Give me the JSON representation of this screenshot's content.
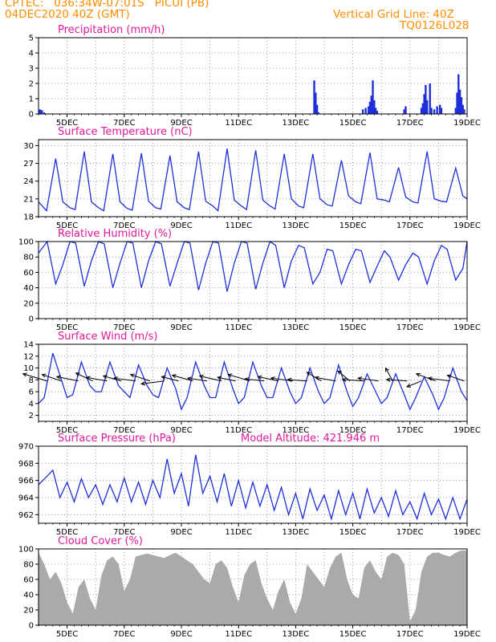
{
  "header": {
    "line1_left": "CPTEC:   036:34W-07:01S   PICUI (PB)",
    "line2_left": "04DEC2020 40Z (GMT)",
    "right1": "Vertical Grid Line: 40Z",
    "right2": "TQ0126L028"
  },
  "colors": {
    "header": "#ff8c00",
    "title": "#e0199a",
    "line": "#1f2fd8",
    "cloud": "#aaaaaa",
    "grid": "#888888"
  },
  "chart_data": [
    {
      "type": "bar",
      "title": "Precipitation (mm/h)",
      "ylim": [
        0,
        5
      ],
      "yticks": [
        "0",
        "1",
        "2",
        "3",
        "4",
        "5"
      ],
      "xticks": [
        "5DEC",
        "7DEC",
        "9DEC",
        "11DEC",
        "13DEC",
        "15DEC",
        "17DEC",
        "19DEC"
      ],
      "xrange_days": [
        4,
        19
      ],
      "series": [
        {
          "x": [
            4.05,
            4.12,
            4.2,
            13.65,
            13.7,
            13.75,
            13.8,
            15.35,
            15.45,
            15.55,
            15.6,
            15.65,
            15.7,
            15.75,
            15.8,
            15.85,
            16.8,
            16.85,
            17.4,
            17.45,
            17.5,
            17.55,
            17.6,
            17.7,
            17.75,
            17.85,
            17.95,
            18.05,
            18.1,
            18.6,
            18.65,
            18.7,
            18.75,
            18.8,
            18.85,
            18.9
          ],
          "values": [
            0.3,
            0.25,
            0.1,
            2.2,
            1.4,
            0.6,
            0.1,
            0.3,
            0.4,
            0.5,
            0.8,
            1.2,
            2.2,
            0.9,
            0.4,
            0.2,
            0.3,
            0.5,
            0.4,
            0.7,
            1.3,
            1.9,
            0.9,
            2.0,
            0.4,
            0.3,
            0.5,
            0.6,
            0.4,
            0.4,
            1.4,
            2.6,
            1.6,
            1.1,
            0.6,
            0.3
          ]
        }
      ]
    },
    {
      "type": "line",
      "title": "Surface Temperature (nC)",
      "ylim": [
        18,
        31
      ],
      "yticks": [
        "18",
        "21",
        "24",
        "27",
        "30"
      ],
      "xticks": [
        "5DEC",
        "7DEC",
        "9DEC",
        "11DEC",
        "13DEC",
        "15DEC",
        "17DEC",
        "19DEC"
      ],
      "xrange_days": [
        4,
        19
      ],
      "series": [
        {
          "x": [
            4.0,
            4.28,
            4.6,
            4.85,
            5.1,
            5.28,
            5.6,
            5.85,
            6.1,
            6.28,
            6.6,
            6.85,
            7.1,
            7.28,
            7.6,
            7.85,
            8.1,
            8.28,
            8.6,
            8.85,
            9.1,
            9.28,
            9.6,
            9.85,
            10.1,
            10.28,
            10.6,
            10.85,
            11.1,
            11.28,
            11.6,
            11.85,
            12.1,
            12.28,
            12.6,
            12.85,
            13.1,
            13.28,
            13.6,
            13.85,
            14.1,
            14.28,
            14.6,
            14.85,
            15.1,
            15.28,
            15.6,
            15.85,
            16.1,
            16.28,
            16.6,
            16.85,
            17.1,
            17.28,
            17.6,
            17.85,
            18.1,
            18.28,
            18.6,
            18.85,
            19.0
          ],
          "values": [
            20.5,
            19.0,
            27.8,
            20.5,
            19.5,
            19.2,
            29.0,
            20.5,
            19.5,
            19.0,
            28.6,
            20.5,
            19.4,
            19.1,
            28.7,
            20.6,
            19.5,
            19.3,
            28.3,
            20.5,
            19.5,
            19.2,
            29.0,
            20.6,
            19.8,
            19.0,
            29.5,
            20.8,
            19.8,
            19.2,
            29.2,
            20.8,
            19.8,
            19.3,
            28.6,
            21.0,
            19.8,
            19.5,
            28.6,
            21.0,
            20.0,
            19.8,
            27.5,
            21.5,
            20.5,
            20.2,
            28.8,
            21.0,
            20.8,
            20.5,
            26.3,
            21.3,
            20.5,
            20.3,
            29.0,
            21.0,
            20.6,
            20.5,
            26.2,
            21.5,
            21.0
          ]
        }
      ]
    },
    {
      "type": "line",
      "title": "Relative Humidity (%)",
      "ylim": [
        0,
        100
      ],
      "yticks": [
        "0",
        "20",
        "40",
        "60",
        "80",
        "100"
      ],
      "xticks": [
        "5DEC",
        "7DEC",
        "9DEC",
        "11DEC",
        "13DEC",
        "15DEC",
        "17DEC",
        "19DEC"
      ],
      "xrange_days": [
        4,
        19
      ],
      "series": [
        {
          "x": [
            4.0,
            4.3,
            4.6,
            4.85,
            5.1,
            5.3,
            5.6,
            5.85,
            6.1,
            6.3,
            6.6,
            6.85,
            7.1,
            7.3,
            7.6,
            7.85,
            8.1,
            8.3,
            8.6,
            8.85,
            9.1,
            9.3,
            9.6,
            9.85,
            10.1,
            10.3,
            10.6,
            10.85,
            11.1,
            11.3,
            11.6,
            11.85,
            12.1,
            12.3,
            12.6,
            12.85,
            13.1,
            13.3,
            13.6,
            13.85,
            14.1,
            14.3,
            14.6,
            14.85,
            15.1,
            15.3,
            15.6,
            15.85,
            16.1,
            16.3,
            16.6,
            16.85,
            17.1,
            17.3,
            17.6,
            17.85,
            18.1,
            18.3,
            18.6,
            18.85,
            19.0
          ],
          "values": [
            85,
            100,
            45,
            70,
            100,
            98,
            42,
            75,
            100,
            97,
            40,
            72,
            100,
            98,
            40,
            75,
            100,
            97,
            42,
            72,
            100,
            98,
            37,
            72,
            100,
            98,
            35,
            72,
            100,
            98,
            38,
            72,
            100,
            95,
            40,
            75,
            95,
            92,
            45,
            60,
            90,
            88,
            45,
            70,
            90,
            88,
            47,
            68,
            88,
            80,
            50,
            70,
            85,
            80,
            45,
            75,
            95,
            90,
            50,
            65,
            100
          ]
        }
      ]
    },
    {
      "type": "line",
      "title": "Surface Wind (m/s)",
      "ylim": [
        1,
        14
      ],
      "yticks": [
        "2",
        "4",
        "6",
        "8",
        "10",
        "12",
        "14"
      ],
      "xticks": [
        "5DEC",
        "7DEC",
        "9DEC",
        "11DEC",
        "13DEC",
        "15DEC",
        "17DEC",
        "19DEC"
      ],
      "xrange_days": [
        4,
        19
      ],
      "series": [
        {
          "x": [
            4.0,
            4.2,
            4.5,
            4.8,
            5.0,
            5.2,
            5.5,
            5.8,
            6.0,
            6.2,
            6.5,
            6.8,
            7.0,
            7.2,
            7.5,
            7.8,
            8.0,
            8.2,
            8.5,
            8.8,
            9.0,
            9.2,
            9.5,
            9.8,
            10.0,
            10.2,
            10.5,
            10.8,
            11.0,
            11.2,
            11.5,
            11.8,
            12.0,
            12.2,
            12.5,
            12.8,
            13.0,
            13.2,
            13.5,
            13.8,
            14.0,
            14.2,
            14.5,
            14.8,
            15.0,
            15.2,
            15.5,
            15.8,
            16.0,
            16.2,
            16.5,
            16.8,
            17.0,
            17.2,
            17.5,
            17.8,
            18.0,
            18.2,
            18.5,
            18.8,
            19.0
          ],
          "values": [
            4,
            5,
            12.5,
            8,
            5,
            5.5,
            11,
            7,
            6,
            6,
            11,
            7,
            6,
            5,
            10.5,
            7,
            5.5,
            5,
            10,
            6.5,
            3,
            5,
            11,
            7,
            5,
            5,
            11,
            6.5,
            4,
            5,
            11,
            7,
            5,
            5,
            10,
            6,
            4,
            5,
            10,
            6,
            4,
            5,
            10.5,
            6,
            3.5,
            5,
            9,
            6,
            4,
            5,
            9,
            5.5,
            3,
            5,
            8.5,
            5.5,
            3,
            5,
            10,
            6,
            4.5
          ]
        }
      ]
    },
    {
      "type": "line",
      "title": "Surface Pressure (hPa)",
      "annotation": "Model Altitude: 421.946 m",
      "ylim": [
        961,
        970
      ],
      "yticks": [
        "962",
        "964",
        "966",
        "968",
        "970"
      ],
      "xticks": [
        "5DEC",
        "7DEC",
        "9DEC",
        "11DEC",
        "13DEC",
        "15DEC",
        "17DEC",
        "19DEC"
      ],
      "xrange_days": [
        4,
        19
      ],
      "series": [
        {
          "x": [
            4.0,
            4.3,
            4.5,
            4.75,
            5.0,
            5.25,
            5.5,
            5.75,
            6.0,
            6.25,
            6.5,
            6.75,
            7.0,
            7.25,
            7.5,
            7.75,
            8.0,
            8.25,
            8.5,
            8.75,
            9.0,
            9.25,
            9.5,
            9.75,
            10.0,
            10.25,
            10.5,
            10.75,
            11.0,
            11.25,
            11.5,
            11.75,
            12.0,
            12.25,
            12.5,
            12.75,
            13.0,
            13.25,
            13.5,
            13.75,
            14.0,
            14.25,
            14.5,
            14.75,
            15.0,
            15.25,
            15.5,
            15.75,
            16.0,
            16.25,
            16.5,
            16.75,
            17.0,
            17.25,
            17.5,
            17.75,
            18.0,
            18.25,
            18.5,
            18.75,
            19.0
          ],
          "values": [
            965.5,
            966.5,
            967.2,
            964.0,
            965.8,
            963.5,
            966.2,
            964.0,
            965.5,
            963.2,
            965.5,
            963.5,
            966.3,
            963.5,
            965.8,
            963.2,
            966.0,
            964.0,
            968.5,
            964.5,
            966.8,
            963.0,
            969.0,
            964.5,
            966.5,
            963.5,
            966.8,
            963.0,
            966.0,
            962.8,
            965.8,
            963.0,
            965.5,
            962.5,
            965.2,
            962.0,
            964.5,
            961.5,
            965.0,
            962.5,
            964.3,
            961.5,
            964.8,
            962.0,
            964.5,
            961.5,
            965.0,
            962.2,
            964.0,
            961.8,
            964.8,
            962.0,
            963.5,
            961.5,
            964.5,
            962.0,
            963.8,
            961.5,
            964.0,
            961.5,
            963.8
          ]
        }
      ]
    },
    {
      "type": "area",
      "title": "Cloud Cover (%)",
      "ylim": [
        0,
        100
      ],
      "yticks": [
        "0",
        "20",
        "40",
        "60",
        "80",
        "100"
      ],
      "xticks": [
        "5DEC",
        "7DEC",
        "9DEC",
        "11DEC",
        "13DEC",
        "15DEC",
        "17DEC",
        "19DEC"
      ],
      "xrange_days": [
        4,
        19
      ],
      "series": [
        {
          "x": [
            4.0,
            4.2,
            4.4,
            4.6,
            4.8,
            5.0,
            5.2,
            5.4,
            5.6,
            5.8,
            6.0,
            6.2,
            6.4,
            6.6,
            6.8,
            7.0,
            7.2,
            7.4,
            7.6,
            7.8,
            8.0,
            8.2,
            8.4,
            8.6,
            8.8,
            9.0,
            9.2,
            9.4,
            9.6,
            9.8,
            10.0,
            10.2,
            10.4,
            10.6,
            10.8,
            11.0,
            11.2,
            11.4,
            11.6,
            11.8,
            12.0,
            12.2,
            12.4,
            12.6,
            12.8,
            13.0,
            13.2,
            13.4,
            13.6,
            13.8,
            14.0,
            14.2,
            14.4,
            14.6,
            14.8,
            15.0,
            15.2,
            15.4,
            15.6,
            15.8,
            16.0,
            16.2,
            16.4,
            16.6,
            16.8,
            17.0,
            17.2,
            17.4,
            17.6,
            17.8,
            18.0,
            18.2,
            18.4,
            18.6,
            18.8,
            19.0
          ],
          "values": [
            95,
            80,
            60,
            70,
            55,
            30,
            15,
            50,
            60,
            35,
            20,
            65,
            85,
            90,
            80,
            45,
            60,
            90,
            92,
            94,
            92,
            90,
            88,
            92,
            95,
            90,
            85,
            80,
            70,
            60,
            55,
            80,
            85,
            75,
            50,
            30,
            65,
            80,
            85,
            55,
            35,
            20,
            45,
            60,
            30,
            15,
            35,
            80,
            70,
            60,
            50,
            75,
            90,
            95,
            60,
            40,
            35,
            75,
            85,
            70,
            60,
            90,
            95,
            92,
            80,
            5,
            20,
            70,
            90,
            95,
            95,
            92,
            90,
            95,
            98,
            98
          ]
        }
      ]
    }
  ],
  "wind_vectors": [
    {
      "day": 4.3,
      "u": -1.0,
      "v": 0.5
    },
    {
      "day": 4.8,
      "u": -0.8,
      "v": 0.45
    },
    {
      "day": 5.4,
      "u": -0.9,
      "v": 0.3
    },
    {
      "day": 5.9,
      "u": -0.7,
      "v": 0.55
    },
    {
      "day": 6.4,
      "u": -0.85,
      "v": 0.25
    },
    {
      "day": 6.9,
      "u": -0.75,
      "v": 0.35
    },
    {
      "day": 7.4,
      "u": -0.9,
      "v": 0.2
    },
    {
      "day": 7.9,
      "u": -0.8,
      "v": 0.45
    },
    {
      "day": 8.4,
      "u": -0.95,
      "v": -0.2
    },
    {
      "day": 8.9,
      "u": -0.7,
      "v": 0.3
    },
    {
      "day": 9.4,
      "u": -0.85,
      "v": 0.4
    },
    {
      "day": 9.9,
      "u": -0.8,
      "v": 0.2
    },
    {
      "day": 10.4,
      "u": -0.9,
      "v": 0.35
    },
    {
      "day": 10.9,
      "u": -0.75,
      "v": 0.25
    },
    {
      "day": 11.4,
      "u": -0.9,
      "v": 0.45
    },
    {
      "day": 11.9,
      "u": -0.8,
      "v": 0.15
    },
    {
      "day": 12.4,
      "u": -0.85,
      "v": 0.3
    },
    {
      "day": 12.9,
      "u": -0.9,
      "v": 0.2
    },
    {
      "day": 13.4,
      "u": -0.8,
      "v": 0.1
    },
    {
      "day": 13.9,
      "u": -0.6,
      "v": 0.6
    },
    {
      "day": 14.4,
      "u": -0.85,
      "v": 0.25
    },
    {
      "day": 14.9,
      "u": -0.5,
      "v": 0.7
    },
    {
      "day": 15.4,
      "u": -0.9,
      "v": 0.1
    },
    {
      "day": 15.9,
      "u": -0.85,
      "v": 0.2
    },
    {
      "day": 16.4,
      "u": -0.3,
      "v": 0.9
    },
    {
      "day": 16.9,
      "u": -0.85,
      "v": 0.1
    },
    {
      "day": 17.4,
      "u": -0.6,
      "v": -0.4
    },
    {
      "day": 17.9,
      "u": -0.8,
      "v": 0.5
    },
    {
      "day": 18.4,
      "u": -0.9,
      "v": 0.2
    },
    {
      "day": 18.9,
      "u": -0.7,
      "v": 0.4
    }
  ]
}
